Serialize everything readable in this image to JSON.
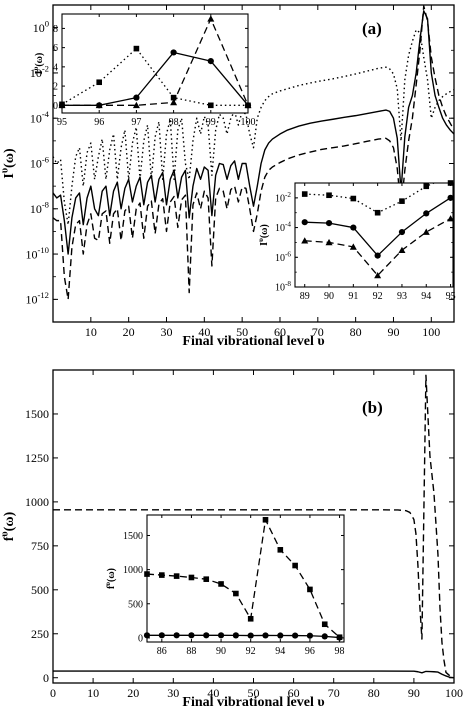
{
  "figure": {
    "panels": [
      "(a)",
      "(b)"
    ]
  },
  "chart_data": [
    {
      "id": "a-main",
      "type": "line",
      "panel_label": "(a)",
      "xlabel": "Final vibrational level υ",
      "ylabel": "I^υ(ω)",
      "yscale": "log",
      "xlim": [
        0,
        106
      ],
      "ylim": [
        1e-13,
        10
      ],
      "xticks": [
        10,
        20,
        30,
        40,
        50,
        60,
        70,
        80,
        90,
        100
      ],
      "yticks": [
        {
          "v": 1,
          "base": "10",
          "exp": "0"
        },
        {
          "v": 0.01,
          "base": "10",
          "exp": "-2"
        },
        {
          "v": 0.0001,
          "base": "10",
          "exp": "-4"
        },
        {
          "v": 1e-06,
          "base": "10",
          "exp": "-6"
        },
        {
          "v": 1e-08,
          "base": "10",
          "exp": "-8"
        },
        {
          "v": 1e-10,
          "base": "10",
          "exp": "-10"
        },
        {
          "v": 1e-12,
          "base": "10",
          "exp": "-12"
        }
      ],
      "series": [
        {
          "style": "solid",
          "x": [
            0,
            1,
            2,
            3,
            4,
            5,
            6,
            7,
            8,
            9,
            10,
            11,
            12,
            13,
            14,
            15,
            16,
            17,
            18,
            19,
            20,
            21,
            22,
            23,
            24,
            25,
            26,
            27,
            28,
            29,
            30,
            31,
            32,
            33,
            34,
            35,
            36,
            37,
            38,
            39,
            40,
            41,
            42,
            43,
            44,
            45,
            46,
            47,
            48,
            49,
            50,
            51,
            52,
            53,
            54,
            55,
            56,
            57,
            58,
            60,
            62,
            65,
            68,
            71,
            74,
            77,
            80,
            83,
            86,
            88,
            89,
            90,
            91,
            92,
            93,
            94,
            95,
            96,
            97,
            98,
            99,
            100,
            101,
            102,
            103,
            104,
            105,
            106
          ],
          "y": [
            5e-08,
            3e-08,
            4e-08,
            3e-09,
            1e-10,
            4e-09,
            3e-08,
            5e-08,
            2e-09,
            3e-08,
            1e-07,
            1e-08,
            5e-09,
            6e-08,
            1e-07,
            5e-09,
            6e-08,
            1.5e-07,
            1e-08,
            8e-08,
            2e-07,
            2e-08,
            1e-07,
            2.5e-07,
            1.5e-08,
            1.5e-07,
            3e-07,
            2e-08,
            2e-07,
            4e-07,
            1.5e-08,
            2e-07,
            5e-07,
            3e-08,
            2.5e-07,
            5e-07,
            4e-09,
            1e-07,
            6e-07,
            2e-07,
            7e-07,
            5e-07,
            5e-09,
            3e-07,
            1e-06,
            9e-07,
            2e-07,
            8e-07,
            1.3e-06,
            2e-07,
            1e-06,
            1e-06,
            1e-07,
            1.3e-08,
            1e-07,
            1e-06,
            4e-06,
            8e-06,
            1.2e-05,
            2e-05,
            3e-05,
            4.5e-05,
            6e-05,
            7.5e-05,
            9e-05,
            0.00011,
            0.00013,
            0.00016,
            0.0002,
            0.00023,
            0.0002,
            0.0001,
            1.3e-05,
            6e-08,
            1.5e-05,
            0.0003,
            0.001,
            0.01,
            0.3,
            5.5,
            2.5,
            0.01,
            0.001,
            0.0003,
            0.0001,
            5e-05,
            3e-05,
            2e-05
          ]
        },
        {
          "style": "dotted",
          "x": [
            0,
            1,
            2,
            3,
            4,
            5,
            6,
            7,
            8,
            9,
            10,
            11,
            12,
            13,
            14,
            15,
            16,
            17,
            18,
            19,
            20,
            21,
            22,
            23,
            24,
            25,
            26,
            27,
            28,
            29,
            30,
            31,
            32,
            33,
            34,
            35,
            36,
            37,
            38,
            39,
            40,
            41,
            42,
            43,
            44,
            45,
            46,
            47,
            48,
            49,
            50,
            51,
            52,
            53,
            54,
            55,
            56,
            57,
            58,
            60,
            62,
            65,
            68,
            71,
            74,
            77,
            80,
            83,
            86,
            88,
            89,
            90,
            91,
            92,
            93,
            94,
            95,
            96,
            97,
            98,
            99,
            100,
            101,
            102,
            103,
            104,
            105,
            106
          ],
          "y": [
            2e-06,
            1e-06,
            1.5e-06,
            2e-08,
            2e-09,
            1e-07,
            2e-06,
            5e-06,
            1e-07,
            3e-06,
            8e-06,
            2e-07,
            2e-06,
            1.2e-05,
            2e-07,
            4e-06,
            2e-05,
            2e-07,
            5e-06,
            3e-05,
            2e-07,
            8e-06,
            4e-05,
            2e-07,
            1e-05,
            5e-05,
            2e-07,
            1.5e-05,
            7e-05,
            2e-07,
            2e-05,
            9e-05,
            2e-07,
            3e-05,
            0.0001,
            1e-06,
            2e-07,
            1e-05,
            0.0001,
            2e-05,
            0.00012,
            5e-05,
            3e-07,
            3e-05,
            0.00015,
            0.0001,
            2e-05,
            0.0001,
            0.0002,
            5e-05,
            0.0002,
            0.00015,
            2e-05,
            5e-06,
            0.0001,
            0.0003,
            0.0006,
            0.0009,
            0.0012,
            0.0016,
            0.002,
            0.0028,
            0.0036,
            0.0045,
            0.0055,
            0.007,
            0.009,
            0.012,
            0.016,
            0.018,
            0.015,
            0.009,
            0.002,
            1e-05,
            0.005,
            0.06,
            0.25,
            0.8,
            0.6,
            0.05,
            0.005,
            0.0001,
            0.0003,
            0.0006,
            0.0009,
            0.0012,
            0.0015,
            0.0018
          ]
        },
        {
          "style": "dashed",
          "x": [
            0,
            1,
            2,
            3,
            4,
            5,
            6,
            7,
            8,
            9,
            10,
            11,
            12,
            13,
            14,
            15,
            16,
            17,
            18,
            19,
            20,
            21,
            22,
            23,
            24,
            25,
            26,
            27,
            28,
            29,
            30,
            31,
            32,
            33,
            34,
            35,
            36,
            37,
            38,
            39,
            40,
            41,
            42,
            43,
            44,
            45,
            46,
            47,
            48,
            49,
            50,
            51,
            52,
            53,
            54,
            55,
            56,
            57,
            58,
            60,
            62,
            65,
            68,
            71,
            74,
            77,
            80,
            83,
            86,
            88,
            89,
            90,
            91,
            92,
            93,
            94,
            95,
            96,
            97,
            98,
            99,
            100,
            101,
            102,
            103,
            104,
            105,
            106
          ],
          "y": [
            4e-09,
            3e-09,
            3e-09,
            1e-11,
            1e-12,
            2e-10,
            2e-09,
            3e-09,
            1e-10,
            2e-09,
            6e-09,
            5e-10,
            4e-10,
            6e-09,
            8e-09,
            3e-10,
            6e-09,
            1e-08,
            4e-10,
            8e-09,
            1.3e-08,
            5e-10,
            1e-08,
            1.8e-08,
            5e-10,
            1.3e-08,
            2.2e-08,
            8e-10,
            1.6e-08,
            2.8e-08,
            1e-09,
            2e-08,
            3.5e-08,
            1.5e-09,
            2.5e-08,
            4e-08,
            2e-12,
            1.5e-08,
            5e-08,
            1e-08,
            6e-08,
            3e-08,
            3e-11,
            3e-08,
            8e-08,
            6e-08,
            1e-08,
            7e-08,
            1e-07,
            2e-08,
            9e-08,
            8e-08,
            1e-08,
            1e-09,
            6e-09,
            6e-08,
            2.5e-07,
            5e-07,
            7e-07,
            1.1e-06,
            1.6e-06,
            2.4e-06,
            3.2e-06,
            4.2e-06,
            5e-06,
            6e-06,
            7.5e-06,
            9.5e-06,
            1.2e-05,
            1.3e-05,
            1e-05,
            5e-06,
            6e-07,
            1e-08,
            5e-07,
            1e-05,
            0.0001,
            0.003,
            0.1,
            9,
            2,
            0.05,
            0.006,
            0.001,
            0.0003,
            0.00012,
            6e-05,
            3e-05
          ]
        }
      ]
    },
    {
      "id": "a-inset-top",
      "type": "line",
      "ylabel": "I^υ(ω)",
      "xlim": [
        95,
        100
      ],
      "ylim": [
        -0.8,
        9.5
      ],
      "xticks": [
        95,
        96,
        97,
        98,
        99,
        100
      ],
      "yticks": [
        0,
        2,
        4,
        6,
        8
      ],
      "series": [
        {
          "style": "dotted",
          "marker": "square",
          "x": [
            95,
            96,
            97,
            98,
            99,
            100
          ],
          "y": [
            0.1,
            2.4,
            5.9,
            0.8,
            0.0,
            0.0
          ]
        },
        {
          "style": "solid",
          "marker": "circle",
          "x": [
            95,
            96,
            97,
            98,
            99,
            100
          ],
          "y": [
            0.0,
            0.0,
            0.8,
            5.5,
            4.6,
            0.0
          ]
        },
        {
          "style": "dashed",
          "marker": "triangle",
          "x": [
            95,
            96,
            97,
            98,
            99,
            100
          ],
          "y": [
            0.0,
            0.0,
            0.0,
            0.3,
            9.0,
            0.0
          ]
        }
      ]
    },
    {
      "id": "a-inset-bottom",
      "type": "line",
      "ylabel": "I^υ(ω)",
      "yscale": "log",
      "xlim": [
        88.6,
        95.1
      ],
      "ylim": [
        1e-08,
        0.1
      ],
      "xticks": [
        89,
        90,
        91,
        92,
        93,
        94,
        95
      ],
      "yticks": [
        {
          "v": 0.01,
          "base": "10",
          "exp": "-2"
        },
        {
          "v": 0.0001,
          "base": "10",
          "exp": "-4"
        },
        {
          "v": 1e-06,
          "base": "10",
          "exp": "-6"
        },
        {
          "v": 1e-08,
          "base": "10",
          "exp": "-8"
        }
      ],
      "series": [
        {
          "style": "dotted",
          "marker": "square",
          "x": [
            89,
            90,
            91,
            92,
            93,
            94,
            95
          ],
          "y": [
            0.018,
            0.015,
            0.009,
            0.001,
            0.006,
            0.06,
            0.3
          ]
        },
        {
          "style": "solid",
          "marker": "circle",
          "x": [
            89,
            90,
            91,
            92,
            93,
            94,
            95
          ],
          "y": [
            0.00023,
            0.0002,
            0.0001,
            1.3e-06,
            5e-05,
            0.0009,
            0.01
          ]
        },
        {
          "style": "dashed",
          "marker": "triangle",
          "x": [
            89,
            90,
            91,
            92,
            93,
            94,
            95
          ],
          "y": [
            1.3e-05,
            1e-05,
            5e-06,
            6e-08,
            3e-06,
            5e-05,
            0.0004
          ]
        }
      ]
    },
    {
      "id": "b-main",
      "type": "line",
      "panel_label": "(b)",
      "xlabel": "Final vibrational level υ",
      "ylabel": "f^υ(ω)",
      "xlim": [
        0,
        100
      ],
      "ylim": [
        -30,
        1750
      ],
      "xticks": [
        0,
        10,
        20,
        30,
        40,
        50,
        60,
        70,
        80,
        90,
        100
      ],
      "yticks": [
        0,
        250,
        500,
        750,
        1000,
        1250,
        1500
      ],
      "series": [
        {
          "style": "dashed",
          "x": [
            0,
            10,
            20,
            30,
            40,
            50,
            60,
            70,
            80,
            86,
            88,
            89,
            90,
            90.5,
            91,
            91.5,
            92,
            93,
            94,
            95,
            96,
            96.5,
            97,
            97.5,
            98,
            99
          ],
          "y": [
            955,
            955,
            955,
            955,
            955,
            955,
            955,
            955,
            955,
            954,
            950,
            940,
            900,
            820,
            640,
            400,
            220,
            1720,
            1260,
            1050,
            700,
            400,
            200,
            100,
            30,
            10
          ]
        },
        {
          "style": "solid",
          "x": [
            0,
            10,
            20,
            30,
            40,
            50,
            60,
            70,
            80,
            90,
            91,
            92,
            93,
            94,
            95,
            96,
            97,
            98,
            99,
            100
          ],
          "y": [
            38,
            38,
            38,
            38,
            38,
            38,
            38,
            38,
            38,
            37,
            34,
            28,
            36,
            35,
            34,
            32,
            20,
            10,
            2,
            0
          ]
        }
      ]
    },
    {
      "id": "b-inset",
      "type": "line",
      "ylabel": "f^υ(ω)",
      "xlim": [
        85,
        98.3
      ],
      "ylim": [
        -60,
        1800
      ],
      "xticks": [
        86,
        88,
        90,
        92,
        94,
        96,
        98
      ],
      "yticks": [
        0,
        500,
        1000,
        1500
      ],
      "series": [
        {
          "style": "dashed",
          "marker": "square",
          "x": [
            85,
            86,
            87,
            88,
            89,
            90,
            91,
            92,
            93,
            94,
            95,
            96,
            97,
            98
          ],
          "y": [
            935,
            920,
            905,
            885,
            860,
            790,
            650,
            280,
            1730,
            1290,
            1060,
            710,
            200,
            10
          ]
        },
        {
          "style": "solid",
          "marker": "circle",
          "x": [
            85,
            86,
            87,
            88,
            89,
            90,
            91,
            92,
            93,
            94,
            95,
            96,
            97,
            98
          ],
          "y": [
            38,
            38,
            38,
            38,
            38,
            38,
            37,
            34,
            36,
            35,
            34,
            32,
            22,
            5
          ]
        }
      ]
    }
  ]
}
